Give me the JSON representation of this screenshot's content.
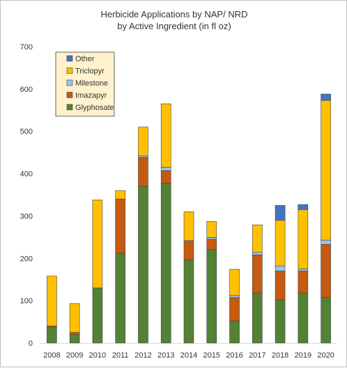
{
  "chart_data": {
    "type": "bar",
    "stacked": true,
    "title": "Herbicide Applications by NAP/ NRD",
    "subtitle": "by Active Ingredient (in fl oz)",
    "xlabel": "",
    "ylabel": "",
    "ylim": [
      0,
      700
    ],
    "yticks": [
      "0",
      "100",
      "200",
      "300",
      "400",
      "500",
      "600",
      "700"
    ],
    "grid": false,
    "legend_position": "top-left",
    "categories": [
      "2008",
      "2009",
      "2010",
      "2011",
      "2012",
      "2013",
      "2014",
      "2015",
      "2016",
      "2017",
      "2018",
      "2019",
      "2020"
    ],
    "series": [
      {
        "name": "Glyphosate",
        "color": "#548235",
        "values": [
          38,
          20,
          130,
          212,
          370,
          377,
          196,
          220,
          52,
          118,
          102,
          118,
          108
        ]
      },
      {
        "name": "Imazapyr",
        "color": "#c55a11",
        "values": [
          2,
          5,
          0,
          128,
          68,
          30,
          44,
          25,
          55,
          90,
          68,
          52,
          125
        ]
      },
      {
        "name": "Milestone",
        "color": "#9dc3e6",
        "values": [
          0,
          0,
          0,
          0,
          4,
          8,
          2,
          4,
          5,
          6,
          12,
          5,
          10
        ]
      },
      {
        "name": "Triclopyr",
        "color": "#ffc000",
        "values": [
          118,
          68,
          208,
          20,
          68,
          150,
          68,
          38,
          62,
          65,
          108,
          140,
          330
        ]
      },
      {
        "name": "Other",
        "color": "#4472c4",
        "values": [
          0,
          0,
          0,
          0,
          0,
          0,
          0,
          0,
          0,
          0,
          35,
          12,
          15
        ]
      }
    ],
    "legend_order": [
      "Other",
      "Triclopyr",
      "Milestone",
      "Imazapyr",
      "Glyphosate"
    ]
  }
}
